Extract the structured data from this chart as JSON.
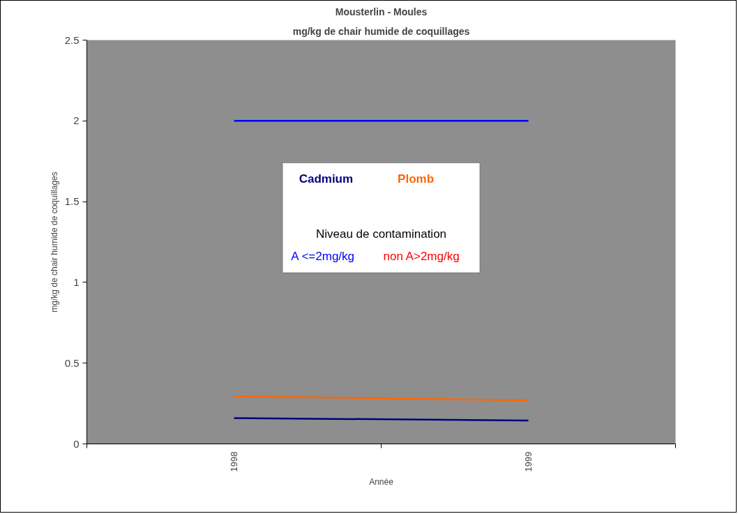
{
  "chart_data": {
    "type": "line",
    "title": "Mousterlin - Moules",
    "subtitle": "mg/kg de chair humide de coquillages",
    "xlabel": "Année",
    "ylabel": "mg/kg de chair humide de coquillages",
    "legend_title": "Niveau de contamination",
    "categories": [
      "1998",
      "1999"
    ],
    "series": [
      {
        "name": "Cadmium",
        "color": "#000080",
        "values": [
          0.16,
          0.145
        ]
      },
      {
        "name": "Plomb",
        "color": "#ff6600",
        "values": [
          0.295,
          0.27
        ]
      },
      {
        "name": "A <=2mg/kg",
        "color": "#0000ff",
        "values": [
          2.0,
          2.0
        ]
      },
      {
        "name": "non A>2mg/kg",
        "color": "#ff0000",
        "values": [
          null,
          null
        ]
      }
    ],
    "ylim": [
      0,
      2.5
    ],
    "yticks": [
      0,
      0.5,
      1,
      1.5,
      2,
      2.5
    ],
    "grid": false,
    "legend": "center",
    "marker": "none",
    "line_style": "solid"
  }
}
